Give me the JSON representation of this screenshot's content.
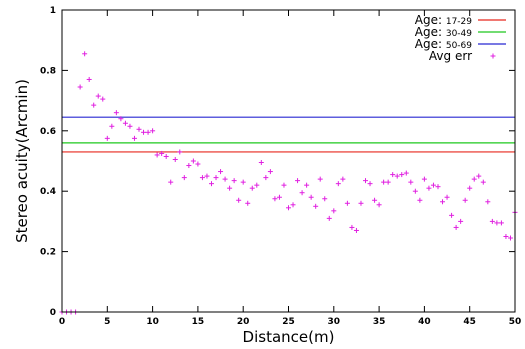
{
  "chart_data": {
    "type": "scatter",
    "xlabel": "Distance(m)",
    "ylabel": "Stereo acuity(Arcmin)",
    "xlim": [
      0,
      50
    ],
    "ylim": [
      0,
      1
    ],
    "x_ticks": [
      "0",
      "5",
      "10",
      "15",
      "20",
      "25",
      "30",
      "35",
      "40",
      "45",
      "50"
    ],
    "y_ticks": [
      "0",
      "0.2",
      "0.4",
      "0.6",
      "0.8",
      "1"
    ],
    "grid": false,
    "legend_position": "top-right",
    "reference_lines": [
      {
        "label_prefix": "Age: ",
        "label_range": "17-29",
        "value": 0.53,
        "color": "#e8281e"
      },
      {
        "label_prefix": "Age: ",
        "label_range": "30-49",
        "value": 0.56,
        "color": "#1ec81e"
      },
      {
        "label_prefix": "Age: ",
        "label_range": "50-69",
        "value": 0.645,
        "color": "#2828d2"
      }
    ],
    "series": [
      {
        "name": "Avg err",
        "color": "#e020e0",
        "marker": "+",
        "x": [
          0,
          0.5,
          1,
          1.5,
          2,
          2.5,
          3,
          3.5,
          4,
          4.5,
          5,
          5.5,
          6,
          6.5,
          7,
          7.5,
          8,
          8.5,
          9,
          9.5,
          10,
          10.5,
          11,
          11.5,
          12,
          12.5,
          13,
          13.5,
          14,
          14.5,
          15,
          15.5,
          16,
          16.5,
          17,
          17.5,
          18,
          18.5,
          19,
          19.5,
          20,
          20.5,
          21,
          21.5,
          22,
          22.5,
          23,
          23.5,
          24,
          24.5,
          25,
          25.5,
          26,
          26.5,
          27,
          27.5,
          28,
          28.5,
          29,
          29.5,
          30,
          30.5,
          31,
          31.5,
          32,
          32.5,
          33,
          33.5,
          34,
          34.5,
          35,
          35.5,
          36,
          36.5,
          37,
          37.5,
          38,
          38.5,
          39,
          39.5,
          40,
          40.5,
          41,
          41.5,
          42,
          42.5,
          43,
          43.5,
          44,
          44.5,
          45,
          45.5,
          46,
          46.5,
          47,
          47.5,
          48,
          48.5,
          49,
          49.5,
          50
        ],
        "y": [
          0,
          0,
          0,
          0,
          0.745,
          0.855,
          0.77,
          0.685,
          0.715,
          0.705,
          0.575,
          0.615,
          0.66,
          0.64,
          0.625,
          0.615,
          0.575,
          0.605,
          0.595,
          0.595,
          0.6,
          0.52,
          0.525,
          0.515,
          0.43,
          0.505,
          0.53,
          0.445,
          0.485,
          0.5,
          0.49,
          0.445,
          0.45,
          0.425,
          0.445,
          0.465,
          0.44,
          0.41,
          0.435,
          0.37,
          0.43,
          0.36,
          0.41,
          0.42,
          0.495,
          0.445,
          0.465,
          0.375,
          0.38,
          0.42,
          0.345,
          0.355,
          0.435,
          0.395,
          0.42,
          0.38,
          0.35,
          0.44,
          0.375,
          0.31,
          0.335,
          0.425,
          0.44,
          0.36,
          0.28,
          0.27,
          0.36,
          0.435,
          0.425,
          0.37,
          0.355,
          0.43,
          0.43,
          0.455,
          0.45,
          0.455,
          0.46,
          0.43,
          0.4,
          0.37,
          0.44,
          0.41,
          0.42,
          0.415,
          0.365,
          0.38,
          0.32,
          0.28,
          0.3,
          0.37,
          0.41,
          0.44,
          0.45,
          0.43,
          0.365,
          0.3,
          0.295,
          0.295,
          0.25,
          0.245,
          0.33
        ]
      }
    ]
  }
}
